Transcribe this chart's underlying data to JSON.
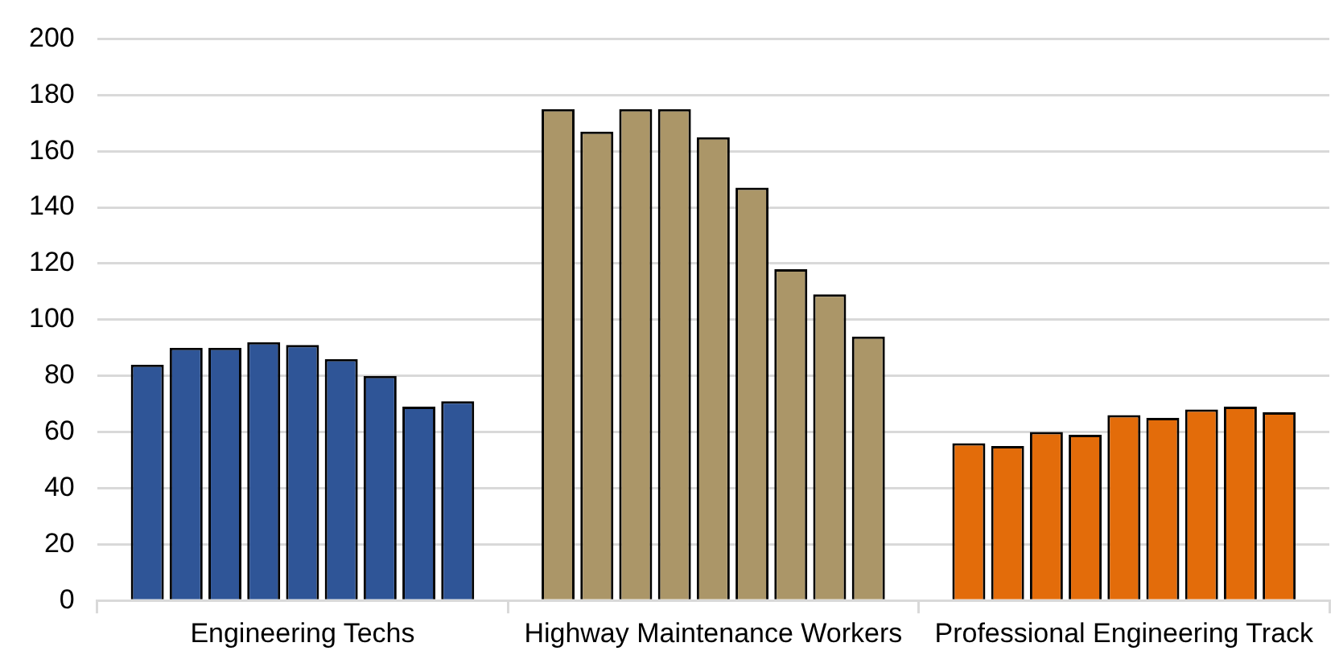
{
  "chart_data": {
    "type": "bar",
    "categories": [
      "Engineering Techs",
      "Highway Maintenance Workers",
      "Professional Engineering Track"
    ],
    "series": [
      {
        "colors": [
          "#2f5597",
          "#ab9668",
          "#e36c0a"
        ],
        "values": [
          84,
          175,
          56
        ]
      },
      {
        "colors": [
          "#2f5597",
          "#ab9668",
          "#e36c0a"
        ],
        "values": [
          90,
          167,
          55
        ]
      },
      {
        "colors": [
          "#2f5597",
          "#ab9668",
          "#e36c0a"
        ],
        "values": [
          90,
          175,
          60
        ]
      },
      {
        "colors": [
          "#2f5597",
          "#ab9668",
          "#e36c0a"
        ],
        "values": [
          92,
          175,
          59
        ]
      },
      {
        "colors": [
          "#2f5597",
          "#ab9668",
          "#e36c0a"
        ],
        "values": [
          91,
          165,
          66
        ]
      },
      {
        "colors": [
          "#2f5597",
          "#ab9668",
          "#e36c0a"
        ],
        "values": [
          86,
          147,
          65
        ]
      },
      {
        "colors": [
          "#2f5597",
          "#ab9668",
          "#e36c0a"
        ],
        "values": [
          80,
          118,
          68
        ]
      },
      {
        "colors": [
          "#2f5597",
          "#ab9668",
          "#e36c0a"
        ],
        "values": [
          69,
          109,
          69
        ]
      },
      {
        "colors": [
          "#2f5597",
          "#ab9668",
          "#e36c0a"
        ],
        "values": [
          71,
          94,
          67
        ]
      }
    ],
    "ylim": [
      0,
      200
    ],
    "yticks": [
      0,
      20,
      40,
      60,
      80,
      100,
      120,
      140,
      160,
      180,
      200
    ],
    "grid": "y",
    "legend": false
  }
}
